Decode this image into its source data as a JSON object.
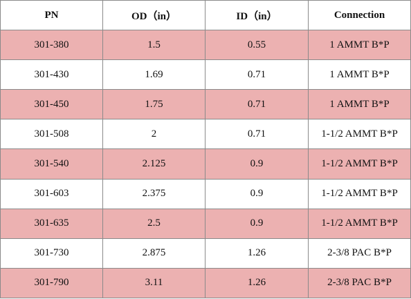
{
  "table": {
    "headers": [
      "PN",
      "OD（in）",
      "ID（in）",
      "Connection"
    ],
    "rows": [
      {
        "pn": "301-380",
        "od": "1.5",
        "id": "0.55",
        "connection": "1 AMMT B*P",
        "shaded": true
      },
      {
        "pn": "301-430",
        "od": "1.69",
        "id": "0.71",
        "connection": "1 AMMT B*P",
        "shaded": false
      },
      {
        "pn": "301-450",
        "od": "1.75",
        "id": "0.71",
        "connection": "1 AMMT B*P",
        "shaded": true
      },
      {
        "pn": "301-508",
        "od": "2",
        "id": "0.71",
        "connection": "1-1/2 AMMT B*P",
        "shaded": false
      },
      {
        "pn": "301-540",
        "od": "2.125",
        "id": "0.9",
        "connection": "1-1/2 AMMT B*P",
        "shaded": true
      },
      {
        "pn": "301-603",
        "od": "2.375",
        "id": "0.9",
        "connection": "1-1/2 AMMT B*P",
        "shaded": false
      },
      {
        "pn": "301-635",
        "od": "2.5",
        "id": "0.9",
        "connection": "1-1/2 AMMT B*P",
        "shaded": true
      },
      {
        "pn": "301-730",
        "od": "2.875",
        "id": "1.26",
        "connection": "2-3/8 PAC B*P",
        "shaded": false
      },
      {
        "pn": "301-790",
        "od": "3.11",
        "id": "1.26",
        "connection": "2-3/8 PAC B*P",
        "shaded": true
      }
    ]
  },
  "colors": {
    "shaded_row": "#ecb1b1",
    "plain_row": "#ffffff",
    "border": "#8a8a8a"
  }
}
